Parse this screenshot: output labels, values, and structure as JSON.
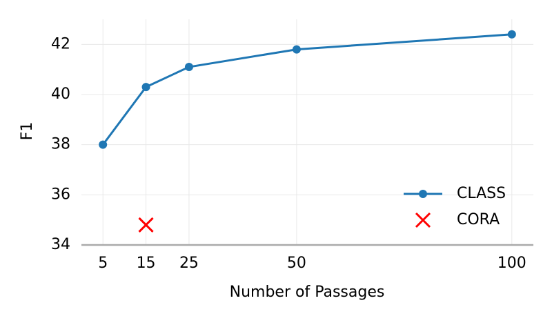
{
  "chart_data": {
    "type": "line",
    "xlabel": "Number of Passages",
    "ylabel": "F1",
    "series": [
      {
        "name": "CLASS",
        "color": "#1f77b4",
        "marker": "o",
        "x": [
          5,
          15,
          25,
          50,
          100
        ],
        "values": [
          38.0,
          40.3,
          41.1,
          41.8,
          42.4
        ]
      },
      {
        "name": "CORA",
        "color": "#ff0000",
        "marker": "x",
        "x": [
          15
        ],
        "values": [
          34.8
        ]
      }
    ],
    "xlim": [
      0,
      105
    ],
    "xticks": [
      5,
      15,
      25,
      50,
      100
    ],
    "ylim": [
      34,
      43
    ],
    "yticks": [
      34,
      36,
      38,
      40,
      42
    ],
    "grid": true,
    "legend": "lower right"
  }
}
